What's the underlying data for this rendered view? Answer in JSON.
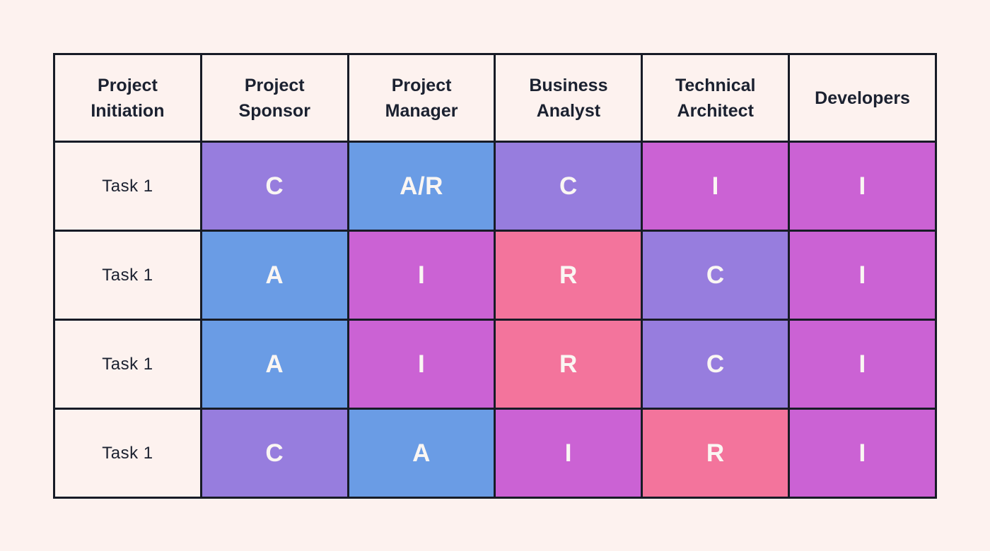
{
  "colors": {
    "page_background": "#FDF2EF",
    "grid_border": "#171B26",
    "header_text": "#1B2130",
    "task_text": "#1B2130",
    "assignment_text": "#FAF6F3",
    "consulted_purple": "#977DDE",
    "accountable_blue": "#6A9CE5",
    "informed_magenta": "#CB62D4",
    "responsible_pink": "#F3749C"
  },
  "matrix": {
    "headers": [
      "Project Initiation",
      "Project Sponsor",
      "Project Manager",
      "Business Analyst",
      "Technical Architect",
      "Developers"
    ],
    "rows": [
      {
        "task": "Task 1",
        "cells": [
          {
            "label": "C",
            "bg": "#977DDE"
          },
          {
            "label": "A/R",
            "bg": "#6A9CE5"
          },
          {
            "label": "C",
            "bg": "#977DDE"
          },
          {
            "label": "I",
            "bg": "#CB62D4"
          },
          {
            "label": "I",
            "bg": "#CB62D4"
          }
        ]
      },
      {
        "task": "Task 1",
        "cells": [
          {
            "label": "A",
            "bg": "#6A9CE5"
          },
          {
            "label": "I",
            "bg": "#CB62D4"
          },
          {
            "label": "R",
            "bg": "#F3749C"
          },
          {
            "label": "C",
            "bg": "#977DDE"
          },
          {
            "label": "I",
            "bg": "#CB62D4"
          }
        ]
      },
      {
        "task": "Task 1",
        "cells": [
          {
            "label": "A",
            "bg": "#6A9CE5"
          },
          {
            "label": "I",
            "bg": "#CB62D4"
          },
          {
            "label": "R",
            "bg": "#F3749C"
          },
          {
            "label": "C",
            "bg": "#977DDE"
          },
          {
            "label": "I",
            "bg": "#CB62D4"
          }
        ]
      },
      {
        "task": "Task 1",
        "cells": [
          {
            "label": "C",
            "bg": "#977DDE"
          },
          {
            "label": "A",
            "bg": "#6A9CE5"
          },
          {
            "label": "I",
            "bg": "#CB62D4"
          },
          {
            "label": "R",
            "bg": "#F3749C"
          },
          {
            "label": "I",
            "bg": "#CB62D4"
          }
        ]
      }
    ]
  }
}
